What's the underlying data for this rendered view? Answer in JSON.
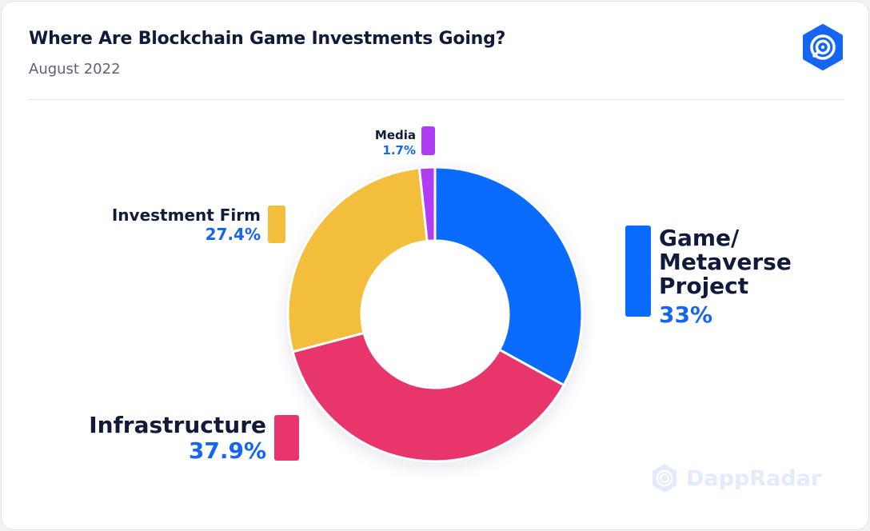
{
  "header": {
    "title": "Where Are Blockchain Game Investments Going?",
    "subtitle": "August 2022"
  },
  "brand": {
    "logo_icon": "dappradar-radar-icon",
    "watermark_text": "DappRadar",
    "accent_color": "#1565f5"
  },
  "chart_data": {
    "type": "pie",
    "title": "Where Are Blockchain Game Investments Going?",
    "subtitle": "August 2022",
    "donut": true,
    "unit": "%",
    "slices": [
      {
        "name": "Game/ Metaverse Project",
        "lines": [
          "Game/",
          "Metaverse",
          "Project"
        ],
        "value": 33,
        "label": "33%",
        "color": "#0a6cff"
      },
      {
        "name": "Infrastructure",
        "lines": [
          "Infrastructure"
        ],
        "value": 37.9,
        "label": "37.9%",
        "color": "#e8356c"
      },
      {
        "name": "Investment Firm",
        "lines": [
          "Investment Firm"
        ],
        "value": 27.4,
        "label": "27.4%",
        "color": "#f2be3c"
      },
      {
        "name": "Media",
        "lines": [
          "Media"
        ],
        "value": 1.7,
        "label": "1.7%",
        "color": "#b03cf5"
      }
    ]
  }
}
